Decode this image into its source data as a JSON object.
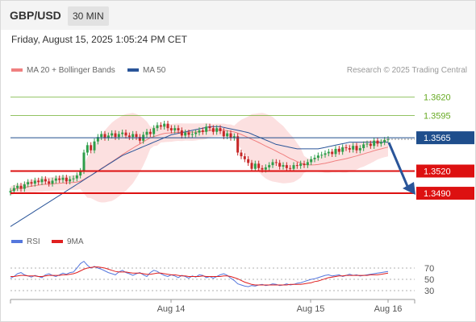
{
  "header": {
    "symbol": "GBP/USD",
    "timeframe": "30 MIN"
  },
  "datetime": "Friday, August 15, 2025 1:05:24 PM CET",
  "legend_main": [
    {
      "label": "MA 20 + Bollinger Bands",
      "color": "#f08080"
    },
    {
      "label": "MA 50",
      "color": "#2a5599"
    }
  ],
  "legend_rsi": [
    {
      "label": "RSI",
      "color": "#5577dd"
    },
    {
      "label": "9MA",
      "color": "#e02020"
    }
  ],
  "credit": "Research © 2025 Trading Central",
  "chart_data": {
    "type": "candlestick",
    "price_range": [
      1.344,
      1.365
    ],
    "x_ticks": [
      "Aug 14",
      "Aug 15",
      "Aug 16"
    ],
    "levels": [
      {
        "value": 1.362,
        "label": "1.3620",
        "style": "resistance",
        "color": "#66aa22"
      },
      {
        "value": 1.3595,
        "label": "1.3595",
        "style": "resistance",
        "color": "#66aa22"
      },
      {
        "value": 1.3565,
        "label": "1.3565",
        "style": "current",
        "color": "#1f4e8c"
      },
      {
        "value": 1.352,
        "label": "1.3520",
        "style": "support",
        "color": "#dd1111"
      },
      {
        "value": 1.349,
        "label": "1.3490",
        "style": "support",
        "color": "#dd1111"
      }
    ],
    "close": [
      1.3493,
      1.3497,
      1.35,
      1.3496,
      1.3502,
      1.3505,
      1.3503,
      1.3507,
      1.3505,
      1.3509,
      1.3506,
      1.3503,
      1.3507,
      1.351,
      1.3508,
      1.3511,
      1.3506,
      1.3509,
      1.351,
      1.3514,
      1.352,
      1.3545,
      1.3555,
      1.3548,
      1.356,
      1.3566,
      1.357,
      1.3565,
      1.3568,
      1.3571,
      1.3566,
      1.357,
      1.3572,
      1.3568,
      1.3566,
      1.357,
      1.3566,
      1.3561,
      1.3569,
      1.3573,
      1.357,
      1.3578,
      1.3582,
      1.358,
      1.3584,
      1.3578,
      1.3575,
      1.3578,
      1.3575,
      1.3568,
      1.3572,
      1.3569,
      1.357,
      1.3572,
      1.3575,
      1.3573,
      1.358,
      1.3578,
      1.3573,
      1.3578,
      1.3574,
      1.3567,
      1.3571,
      1.3565,
      1.3567,
      1.3545,
      1.354,
      1.3536,
      1.3531,
      1.3523,
      1.353,
      1.3524,
      1.3522,
      1.3525,
      1.3528,
      1.3532,
      1.3531,
      1.3526,
      1.3528,
      1.3524,
      1.3523,
      1.3528,
      1.3527,
      1.353,
      1.3528,
      1.3532,
      1.3536,
      1.3538,
      1.3541,
      1.3542,
      1.3544,
      1.3546,
      1.3543,
      1.355,
      1.3546,
      1.3552,
      1.3551,
      1.3549,
      1.3554,
      1.3548,
      1.3551,
      1.3556,
      1.3557,
      1.3554,
      1.3561,
      1.3557,
      1.3559,
      1.3562,
      1.3563
    ],
    "ma50": [
      1.3445,
      1.3448,
      1.3451,
      1.3454,
      1.3457,
      1.346,
      1.3463,
      1.3466,
      1.3469,
      1.3472,
      1.3475,
      1.3478,
      1.3481,
      1.3484,
      1.3487,
      1.349,
      1.3493,
      1.3496,
      1.3499,
      1.3502,
      1.3505,
      1.3508,
      1.3511,
      1.3514,
      1.3517,
      1.352,
      1.3523,
      1.3526,
      1.3529,
      1.3532,
      1.3535,
      1.3538,
      1.3541,
      1.3543,
      1.3545,
      1.3547,
      1.3549,
      1.3551,
      1.3553,
      1.3555,
      1.3557,
      1.3559,
      1.3561,
      1.3563,
      1.3565,
      1.3567,
      1.3569,
      1.357,
      1.3571,
      1.3572,
      1.3573,
      1.3574,
      1.3575,
      1.3576,
      1.3577,
      1.3578,
      1.3579,
      1.358,
      1.358,
      1.358,
      1.358,
      1.3579,
      1.3578,
      1.3577,
      1.3576,
      1.3575,
      1.3574,
      1.3573,
      1.3572,
      1.357,
      1.3568,
      1.3566,
      1.3564,
      1.3562,
      1.356,
      1.3558,
      1.3556,
      1.3555,
      1.3554,
      1.3553,
      1.3552,
      1.3551,
      1.355,
      1.355,
      1.355,
      1.355,
      1.355,
      1.355,
      1.355,
      1.3551,
      1.3552,
      1.3553,
      1.3554,
      1.3555,
      1.3556,
      1.3557,
      1.3558,
      1.3559,
      1.3559,
      1.3559,
      1.3559,
      1.3559,
      1.3559,
      1.3559,
      1.3559,
      1.3559,
      1.3559,
      1.3559,
      1.3559
    ],
    "rsi": {
      "levels": [
        70,
        50,
        30
      ],
      "rsi": [
        52,
        55,
        60,
        62,
        58,
        56,
        54,
        57,
        55,
        53,
        58,
        60,
        57,
        55,
        58,
        61,
        59,
        62,
        63,
        70,
        78,
        82,
        75,
        70,
        73,
        70,
        68,
        65,
        62,
        60,
        58,
        63,
        66,
        62,
        60,
        57,
        60,
        62,
        58,
        55,
        62,
        66,
        64,
        60,
        57,
        55,
        58,
        56,
        53,
        57,
        55,
        52,
        56,
        54,
        58,
        57,
        53,
        55,
        52,
        55,
        58,
        60,
        57,
        52,
        48,
        42,
        40,
        38,
        37,
        39,
        38,
        40,
        41,
        39,
        40,
        42,
        41,
        39,
        40,
        42,
        40,
        41,
        43,
        44,
        46,
        48,
        50,
        51,
        53,
        55,
        57,
        58,
        56,
        57,
        58,
        55,
        57,
        59,
        57,
        58,
        56,
        57,
        58,
        59,
        60,
        61,
        62,
        63,
        64
      ],
      "ma9": [
        55,
        55,
        56,
        57,
        57,
        56,
        56,
        56,
        55,
        55,
        56,
        57,
        57,
        57,
        57,
        58,
        58,
        59,
        60,
        62,
        65,
        68,
        70,
        71,
        72,
        72,
        71,
        70,
        68,
        66,
        64,
        63,
        63,
        63,
        62,
        61,
        61,
        61,
        60,
        59,
        59,
        60,
        61,
        61,
        60,
        59,
        58,
        58,
        57,
        56,
        56,
        55,
        55,
        55,
        55,
        56,
        55,
        55,
        55,
        55,
        55,
        56,
        56,
        55,
        53,
        51,
        48,
        45,
        43,
        41,
        40,
        40,
        40,
        40,
        40,
        40,
        40,
        40,
        40,
        40,
        41,
        41,
        41,
        41,
        42,
        43,
        44,
        46,
        47,
        49,
        51,
        53,
        54,
        55,
        56,
        56,
        57,
        57,
        57,
        57,
        57,
        57,
        57,
        58,
        58,
        58,
        59,
        60,
        61
      ]
    }
  }
}
